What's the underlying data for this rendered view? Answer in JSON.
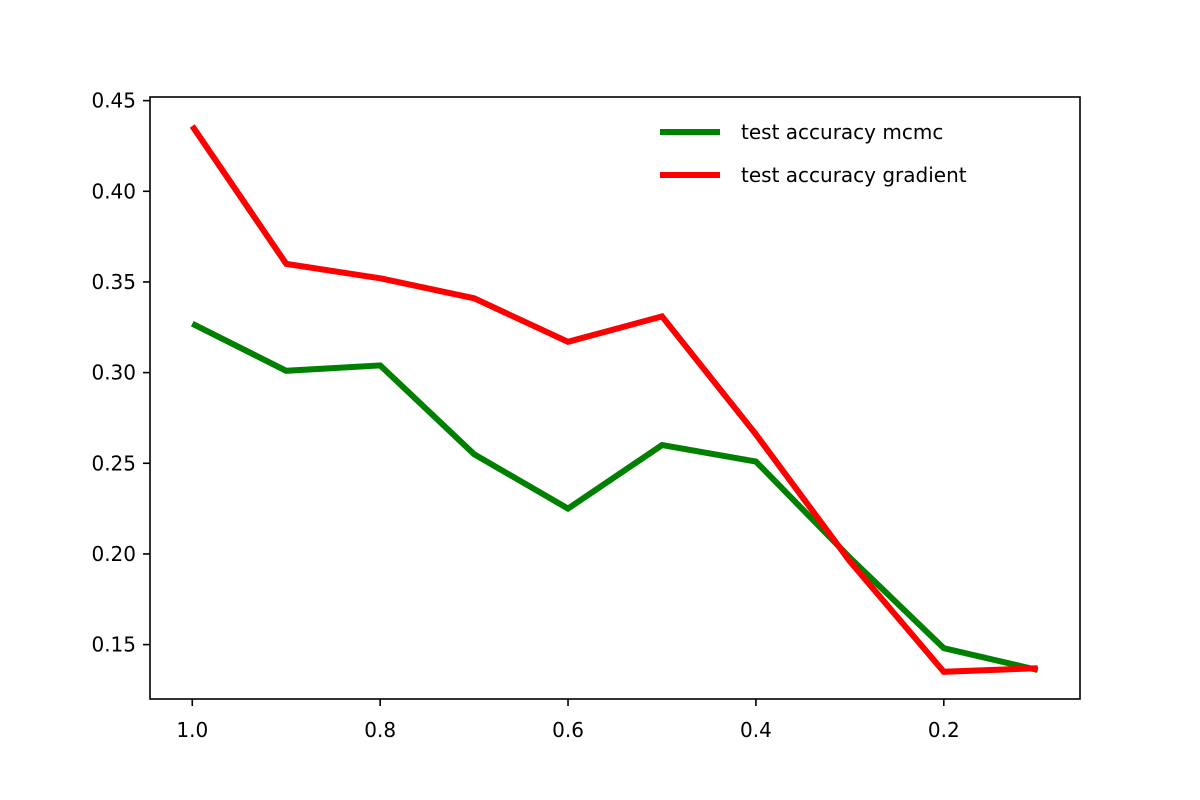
{
  "chart_data": {
    "type": "line",
    "title": "",
    "xlabel": "",
    "ylabel": "",
    "x_inverted": true,
    "xlim": [
      1.045,
      0.055
    ],
    "ylim": [
      0.12,
      0.452
    ],
    "x_ticks": [
      {
        "value": 1.0,
        "label": "1.0"
      },
      {
        "value": 0.8,
        "label": "0.8"
      },
      {
        "value": 0.6,
        "label": "0.6"
      },
      {
        "value": 0.4,
        "label": "0.4"
      },
      {
        "value": 0.2,
        "label": "0.2"
      }
    ],
    "y_ticks": [
      {
        "value": 0.15,
        "label": "0.15"
      },
      {
        "value": 0.2,
        "label": "0.20"
      },
      {
        "value": 0.25,
        "label": "0.25"
      },
      {
        "value": 0.3,
        "label": "0.30"
      },
      {
        "value": 0.35,
        "label": "0.35"
      },
      {
        "value": 0.4,
        "label": "0.40"
      },
      {
        "value": 0.45,
        "label": "0.45"
      }
    ],
    "x": [
      1.0,
      0.9,
      0.8,
      0.7,
      0.6,
      0.5,
      0.4,
      0.3,
      0.2,
      0.1
    ],
    "series": [
      {
        "name": "test accuracy mcmc",
        "color": "#008000",
        "values": [
          0.327,
          0.301,
          0.304,
          0.255,
          0.225,
          0.26,
          0.251,
          0.198,
          0.148,
          0.136
        ]
      },
      {
        "name": "test accuracy gradient",
        "color": "#ff0000",
        "values": [
          0.436,
          0.36,
          0.352,
          0.341,
          0.317,
          0.331,
          0.266,
          0.196,
          0.135,
          0.137
        ]
      }
    ],
    "grid": false,
    "legend_position": "top-right"
  }
}
